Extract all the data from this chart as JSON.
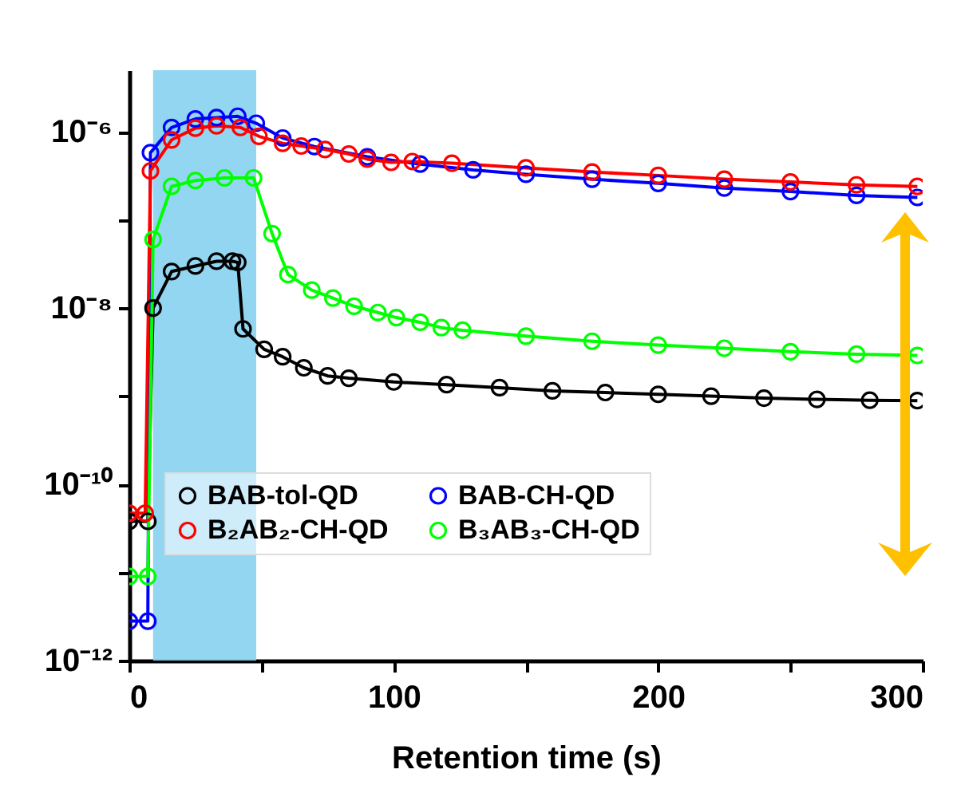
{
  "chart_data": {
    "type": "line",
    "xlabel": "Retention time (s)",
    "log": "y",
    "xlim": [
      0,
      300
    ],
    "ylim": [
      1e-12,
      5e-06
    ],
    "xticks": [
      0,
      {
        "value": 50,
        "label": null
      },
      100,
      {
        "value": 150,
        "label": null
      },
      200,
      {
        "value": 250,
        "label": null
      },
      300
    ],
    "yticks": [
      {
        "value": 1e-12,
        "label": "10⁻¹²"
      },
      {
        "value": 1e-11,
        "label": null
      },
      {
        "value": 1e-10,
        "label": "10⁻¹⁰"
      },
      {
        "value": 1e-09,
        "label": null
      },
      {
        "value": 1e-08,
        "label": "10⁻⁸"
      },
      {
        "value": 1e-07,
        "label": null
      },
      {
        "value": 1e-06,
        "label": "10⁻⁶"
      }
    ],
    "grid": false,
    "legend": "bottom left",
    "marker": "circle",
    "line_style": "solid",
    "bands": [
      {
        "axis": "x",
        "from": 9,
        "to": 48,
        "color": "#86d2f0"
      }
    ],
    "series": [
      {
        "name": "BAB-tol-QD",
        "color": "#000000",
        "x": [
          0,
          7,
          9,
          16,
          25,
          33,
          39,
          41,
          43,
          51,
          58,
          66,
          75,
          83,
          100,
          120,
          140,
          160,
          180,
          200,
          220,
          240,
          260,
          280,
          298
        ],
        "values": [
          3.8e-11,
          3.8e-11,
          1e-08,
          2.6e-08,
          3e-08,
          3.4e-08,
          3.4e-08,
          3.3e-08,
          5.8e-09,
          3.4e-09,
          2.8e-09,
          2.1e-09,
          1.7e-09,
          1.6e-09,
          1.45e-09,
          1.35e-09,
          1.25e-09,
          1.15e-09,
          1.1e-09,
          1.05e-09,
          1e-09,
          9.5e-10,
          9.2e-10,
          9e-10,
          8.9e-10
        ]
      },
      {
        "name": "BAB-CH-QD",
        "color": "#0000ff",
        "x": [
          0,
          7,
          8,
          16,
          25,
          33,
          41,
          48,
          58,
          70,
          90,
          110,
          130,
          150,
          175,
          200,
          225,
          250,
          275,
          298
        ],
        "values": [
          2.8e-12,
          2.8e-12,
          5.8e-07,
          1.12e-06,
          1.4e-06,
          1.45e-06,
          1.5e-06,
          1.25e-06,
          8.5e-07,
          6.8e-07,
          5.2e-07,
          4.3e-07,
          3.7e-07,
          3.3e-07,
          2.9e-07,
          2.6e-07,
          2.3e-07,
          2.1e-07,
          1.9e-07,
          1.8e-07
        ]
      },
      {
        "name": "B₂AB₂-CH-QD",
        "color": "#ff0000",
        "x": [
          0,
          6,
          8,
          16,
          25,
          33,
          42,
          49,
          58,
          65,
          74,
          83,
          90,
          99,
          107,
          122,
          150,
          175,
          200,
          225,
          250,
          275,
          298
        ],
        "values": [
          4.7e-11,
          4.7e-11,
          3.6e-07,
          8.1e-07,
          1.1e-06,
          1.17e-06,
          1.12e-06,
          8.9e-07,
          7.4e-07,
          6.9e-07,
          6.3e-07,
          5.6e-07,
          4.9e-07,
          4.5e-07,
          4.6e-07,
          4.4e-07,
          3.9e-07,
          3.5e-07,
          3.2e-07,
          2.9e-07,
          2.7e-07,
          2.5e-07,
          2.4e-07
        ]
      },
      {
        "name": "B₃AB₃-CH-QD",
        "color": "#00ff00",
        "x": [
          0,
          7,
          9,
          16,
          25,
          36,
          47,
          54,
          60,
          69,
          77,
          85,
          94,
          101,
          110,
          118,
          126,
          150,
          175,
          200,
          225,
          250,
          275,
          298
        ],
        "values": [
          9e-12,
          9e-12,
          6e-08,
          2.4e-07,
          2.8e-07,
          3e-07,
          3e-07,
          7e-08,
          2.4e-08,
          1.6e-08,
          1.3e-08,
          1.05e-08,
          8.9e-09,
          7.8e-09,
          6.9e-09,
          6e-09,
          5.6e-09,
          4.8e-09,
          4.2e-09,
          3.8e-09,
          3.5e-09,
          3.2e-09,
          3e-09,
          2.9e-09
        ]
      }
    ]
  }
}
